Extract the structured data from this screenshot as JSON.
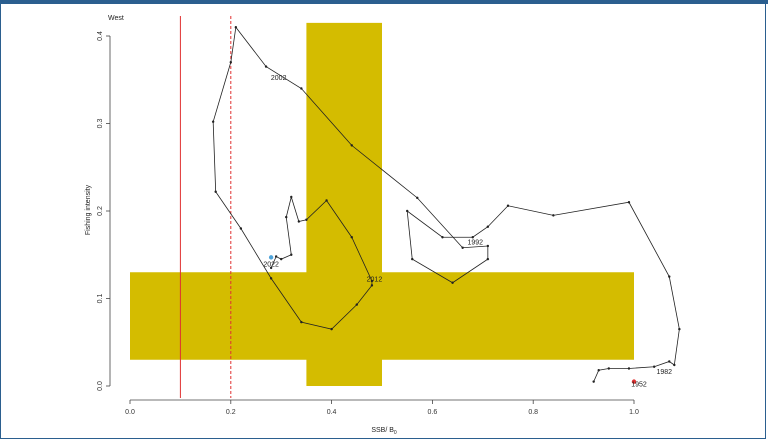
{
  "chart_data": {
    "type": "line",
    "title": "West",
    "xlabel": "SSB/ B",
    "xlabel_sub": "0",
    "ylabel": "Fishing intensity",
    "xlim": [
      0.0,
      1.0
    ],
    "ylim": [
      0.0,
      0.4
    ],
    "xticks": [
      0.0,
      0.2,
      0.4,
      0.6,
      0.8,
      1.0
    ],
    "xtick_labels": [
      "0.0",
      "0.2",
      "0.4",
      "0.6",
      "0.8",
      "1.0"
    ],
    "yticks": [
      0.0,
      0.1,
      0.2,
      0.3,
      0.4
    ],
    "ytick_labels": [
      "0.0",
      "0.1",
      "0.2",
      "0.3",
      "0.4"
    ],
    "grid": false,
    "reference_lines": [
      {
        "axis": "x",
        "value": 0.1,
        "style": "solid",
        "color": "#e03030"
      },
      {
        "axis": "x",
        "value": 0.2,
        "style": "dashed",
        "color": "#e03030"
      }
    ],
    "target_zones": [
      {
        "x": [
          0.35,
          0.5
        ],
        "y": [
          0.0,
          0.415
        ],
        "color": "#d4bc00"
      },
      {
        "x": [
          0.0,
          1.0
        ],
        "y": [
          0.03,
          0.13
        ],
        "color": "#d4bc00"
      }
    ],
    "trajectory": {
      "color": "#222222",
      "points": [
        [
          0.92,
          0.005
        ],
        [
          0.93,
          0.018
        ],
        [
          0.95,
          0.02
        ],
        [
          0.99,
          0.02
        ],
        [
          1.04,
          0.022
        ],
        [
          1.07,
          0.028
        ],
        [
          1.08,
          0.024
        ],
        [
          1.09,
          0.065
        ],
        [
          1.07,
          0.125
        ],
        [
          0.99,
          0.21
        ],
        [
          0.84,
          0.195
        ],
        [
          0.75,
          0.206
        ],
        [
          0.71,
          0.182
        ],
        [
          0.68,
          0.17
        ],
        [
          0.62,
          0.17
        ],
        [
          0.55,
          0.2
        ],
        [
          0.56,
          0.145
        ],
        [
          0.64,
          0.118
        ],
        [
          0.71,
          0.145
        ],
        [
          0.71,
          0.16
        ],
        [
          0.66,
          0.158
        ],
        [
          0.57,
          0.215
        ],
        [
          0.44,
          0.275
        ],
        [
          0.34,
          0.34
        ],
        [
          0.27,
          0.365
        ],
        [
          0.21,
          0.41
        ],
        [
          0.2,
          0.37
        ],
        [
          0.165,
          0.302
        ],
        [
          0.17,
          0.222
        ],
        [
          0.22,
          0.18
        ],
        [
          0.28,
          0.123
        ],
        [
          0.34,
          0.073
        ],
        [
          0.4,
          0.065
        ],
        [
          0.45,
          0.093
        ],
        [
          0.48,
          0.115
        ],
        [
          0.48,
          0.12
        ],
        [
          0.44,
          0.17
        ],
        [
          0.39,
          0.212
        ],
        [
          0.35,
          0.19
        ],
        [
          0.335,
          0.188
        ],
        [
          0.32,
          0.216
        ],
        [
          0.31,
          0.193
        ],
        [
          0.32,
          0.15
        ],
        [
          0.3,
          0.145
        ],
        [
          0.29,
          0.148
        ],
        [
          0.28,
          0.135
        ]
      ]
    },
    "point_markers": [
      {
        "x": 1.0,
        "y": 0.005,
        "color": "#e03030"
      },
      {
        "x": 0.28,
        "y": 0.147,
        "color": "#4fa3d9"
      }
    ],
    "year_labels": [
      {
        "text": "1952",
        "x": 1.01,
        "y": 0.003
      },
      {
        "text": "1982",
        "x": 1.06,
        "y": 0.017
      },
      {
        "text": "1992",
        "x": 0.685,
        "y": 0.165
      },
      {
        "text": "2002",
        "x": 0.295,
        "y": 0.353
      },
      {
        "text": "2012",
        "x": 0.485,
        "y": 0.123
      },
      {
        "text": "2022",
        "x": 0.28,
        "y": 0.14
      }
    ]
  }
}
